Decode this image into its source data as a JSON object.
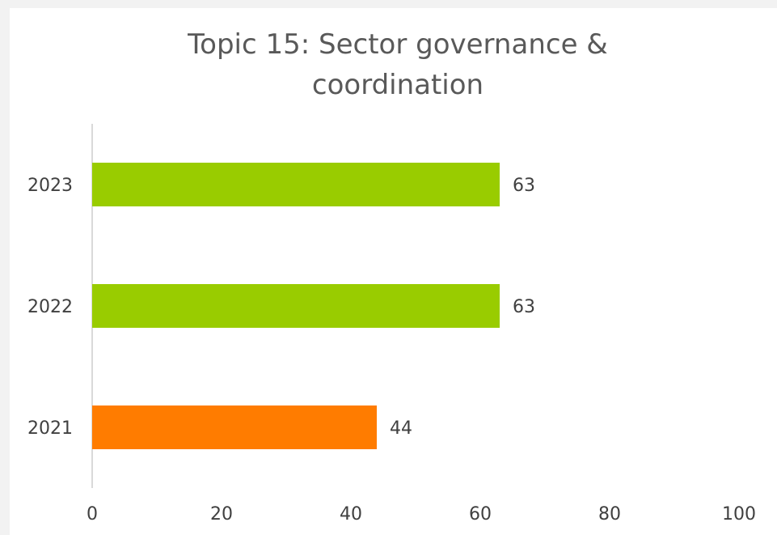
{
  "chart_data": {
    "type": "bar",
    "orientation": "horizontal",
    "title": "Topic 15: Sector governance & coordination",
    "categories": [
      "2023",
      "2022",
      "2021"
    ],
    "values": [
      63,
      63,
      44
    ],
    "colors": [
      "#99cc00",
      "#99cc00",
      "#ff7c00"
    ],
    "xlim": [
      0,
      100
    ],
    "xticks": [
      0,
      20,
      40,
      60,
      80,
      100
    ],
    "grid": false
  }
}
